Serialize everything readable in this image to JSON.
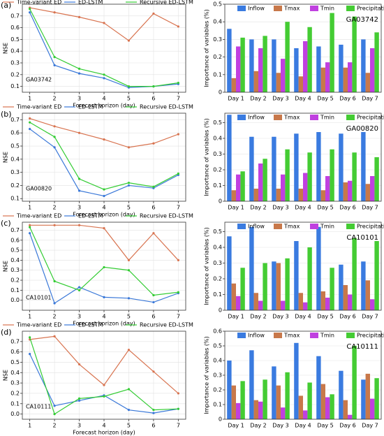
{
  "chart_data": [
    {
      "type": "line",
      "panel_label": "(a)",
      "annotation": "GA03742",
      "xlabel": "Forecast horizon (day)",
      "ylabel": "NSE",
      "x": [
        1,
        2,
        3,
        4,
        5,
        6,
        7
      ],
      "xlim": [
        0.7,
        7.3
      ],
      "xticks": [
        1,
        2,
        3,
        4,
        5,
        6,
        7
      ],
      "ylim": [
        0.05,
        0.8
      ],
      "yticks": [
        0.1,
        0.2,
        0.3,
        0.4,
        0.5,
        0.6,
        0.7
      ],
      "series": [
        {
          "name": "Time-variant ED",
          "color": "#d8734f",
          "values": [
            0.77,
            0.73,
            0.69,
            0.64,
            0.49,
            0.72,
            0.61
          ]
        },
        {
          "name": "ED-LSTM",
          "color": "#3a78d8",
          "values": [
            0.73,
            0.28,
            0.21,
            0.17,
            0.09,
            0.1,
            0.12
          ]
        },
        {
          "name": "Recursive ED-LSTM",
          "color": "#33cc33",
          "values": [
            0.76,
            0.35,
            0.25,
            0.2,
            0.1,
            0.1,
            0.13
          ]
        }
      ]
    },
    {
      "type": "bar",
      "annotation": "GA03742",
      "ylabel": "Importance of variables (%)",
      "categories": [
        "Day 1",
        "Day 2",
        "Day 3",
        "Day 4",
        "Day 5",
        "Day 6",
        "Day 7"
      ],
      "ylim": [
        0,
        0.5
      ],
      "yticks": [
        0.0,
        0.1,
        0.2,
        0.3,
        0.4,
        0.5
      ],
      "series": [
        {
          "name": "Inflow",
          "color": "#3a7be0",
          "values": [
            0.36,
            0.3,
            0.3,
            0.25,
            0.26,
            0.27,
            0.3
          ]
        },
        {
          "name": "Tmax",
          "color": "#c8784a",
          "values": [
            0.08,
            0.12,
            0.11,
            0.09,
            0.14,
            0.14,
            0.11
          ]
        },
        {
          "name": "Tmin",
          "color": "#c040e0",
          "values": [
            0.26,
            0.25,
            0.19,
            0.29,
            0.17,
            0.17,
            0.25
          ]
        },
        {
          "name": "Precipitation",
          "color": "#44cc33",
          "values": [
            0.31,
            0.32,
            0.4,
            0.37,
            0.45,
            0.43,
            0.34
          ]
        }
      ]
    },
    {
      "type": "line",
      "panel_label": "(b)",
      "annotation": "GA00820",
      "xlabel": "Forecast horizon (day)",
      "ylabel": "NSE",
      "x": [
        1,
        2,
        3,
        4,
        5,
        6,
        7
      ],
      "xlim": [
        0.7,
        7.3
      ],
      "xticks": [
        1,
        2,
        3,
        4,
        5,
        6,
        7
      ],
      "ylim": [
        0.08,
        0.75
      ],
      "yticks": [
        0.1,
        0.2,
        0.3,
        0.4,
        0.5,
        0.6,
        0.7
      ],
      "series": [
        {
          "name": "Time-variant ED",
          "color": "#d8734f",
          "values": [
            0.71,
            0.65,
            0.6,
            0.55,
            0.49,
            0.52,
            0.59
          ]
        },
        {
          "name": "ED-LSTM",
          "color": "#3a78d8",
          "values": [
            0.63,
            0.49,
            0.16,
            0.12,
            0.2,
            0.18,
            0.28
          ]
        },
        {
          "name": "Recursive ED-LSTM",
          "color": "#33cc33",
          "values": [
            0.68,
            0.57,
            0.25,
            0.17,
            0.22,
            0.19,
            0.29
          ]
        }
      ]
    },
    {
      "type": "bar",
      "annotation": "GA00820",
      "ylabel": "Importance of variables (%)",
      "categories": [
        "Day 1",
        "Day 2",
        "Day 3",
        "Day 4",
        "Day 5",
        "Day 6",
        "Day 7"
      ],
      "ylim": [
        0,
        0.56
      ],
      "yticks": [
        0.0,
        0.1,
        0.2,
        0.3,
        0.4,
        0.5
      ],
      "series": [
        {
          "name": "Inflow",
          "color": "#3a7be0",
          "values": [
            0.55,
            0.41,
            0.41,
            0.43,
            0.44,
            0.43,
            0.44
          ]
        },
        {
          "name": "Tmax",
          "color": "#c8784a",
          "values": [
            0.07,
            0.08,
            0.08,
            0.08,
            0.07,
            0.12,
            0.11
          ]
        },
        {
          "name": "Tmin",
          "color": "#c040e0",
          "values": [
            0.17,
            0.24,
            0.17,
            0.18,
            0.16,
            0.13,
            0.16
          ]
        },
        {
          "name": "Precipitation",
          "color": "#44cc33",
          "values": [
            0.19,
            0.27,
            0.33,
            0.31,
            0.33,
            0.31,
            0.28
          ]
        }
      ]
    },
    {
      "type": "line",
      "panel_label": "(c)",
      "annotation": "CA10101",
      "xlabel": "Forecast horizon (day)",
      "ylabel": "NSE",
      "x": [
        1,
        2,
        3,
        4,
        5,
        6,
        7
      ],
      "xlim": [
        0.7,
        7.3
      ],
      "xticks": [
        1,
        2,
        3,
        4,
        5,
        6,
        7
      ],
      "ylim": [
        -0.1,
        0.78
      ],
      "yticks": [
        {
          "value": 0,
          "label": "0.0"
        },
        0.1,
        0.2,
        0.3,
        0.4,
        0.5,
        0.6,
        0.7
      ],
      "series": [
        {
          "name": "Time-variant ED",
          "color": "#d8734f",
          "values": [
            0.75,
            0.75,
            0.75,
            0.72,
            0.4,
            0.67,
            0.4
          ]
        },
        {
          "name": "ED-LSTM",
          "color": "#3a78d8",
          "values": [
            0.67,
            -0.03,
            0.13,
            0.03,
            0.02,
            -0.02,
            0.07
          ]
        },
        {
          "name": "Recursive ED-LSTM",
          "color": "#33cc33",
          "values": [
            0.73,
            0.19,
            0.1,
            0.33,
            0.3,
            0.05,
            0.08
          ]
        }
      ]
    },
    {
      "type": "bar",
      "annotation": "CA10101",
      "ylabel": "Importance of variables (%)",
      "categories": [
        "Day 1",
        "Day 2",
        "Day 3",
        "Day 4",
        "Day 5",
        "Day 6",
        "Day 7"
      ],
      "ylim": [
        0,
        0.56
      ],
      "yticks": [
        0.0,
        0.1,
        0.2,
        0.3,
        0.4,
        0.5
      ],
      "series": [
        {
          "name": "Inflow",
          "color": "#3a7be0",
          "values": [
            0.47,
            0.53,
            0.31,
            0.44,
            0.53,
            0.29,
            0.31
          ]
        },
        {
          "name": "Tmax",
          "color": "#c8784a",
          "values": [
            0.17,
            0.11,
            0.3,
            0.11,
            0.12,
            0.16,
            0.19
          ]
        },
        {
          "name": "Tmin",
          "color": "#c040e0",
          "values": [
            0.09,
            0.06,
            0.06,
            0.05,
            0.08,
            0.1,
            0.07
          ]
        },
        {
          "name": "Precipitation",
          "color": "#44cc33",
          "values": [
            0.27,
            0.3,
            0.33,
            0.4,
            0.27,
            0.46,
            0.44
          ]
        }
      ]
    },
    {
      "type": "line",
      "panel_label": "(d)",
      "annotation": "CA10111",
      "xlabel": "Forecast horizon (day)",
      "ylabel": "NSE",
      "x": [
        1,
        2,
        3,
        4,
        5,
        6,
        7
      ],
      "xlim": [
        0.7,
        7.3
      ],
      "xticks": [
        1,
        2,
        3,
        4,
        5,
        6,
        7
      ],
      "ylim": [
        -0.05,
        0.8
      ],
      "yticks": [
        {
          "value": 0,
          "label": "0.0"
        },
        0.1,
        0.2,
        0.3,
        0.4,
        0.5,
        0.6,
        0.7
      ],
      "series": [
        {
          "name": "Time-variant ED",
          "color": "#d8734f",
          "values": [
            0.72,
            0.75,
            0.48,
            0.28,
            0.62,
            0.41,
            0.2
          ]
        },
        {
          "name": "ED-LSTM",
          "color": "#3a78d8",
          "values": [
            0.58,
            0.08,
            0.13,
            0.18,
            0.04,
            0.01,
            0.05
          ]
        },
        {
          "name": "Recursive ED-LSTM",
          "color": "#33cc33",
          "values": [
            0.74,
            0.0,
            0.15,
            0.17,
            0.24,
            0.04,
            0.05
          ]
        }
      ]
    },
    {
      "type": "bar",
      "annotation": "CA10111",
      "ylabel": "Importance of variables (%)",
      "categories": [
        "Day 1",
        "Day 2",
        "Day 3",
        "Day 4",
        "Day 5",
        "Day 6",
        "Day 7"
      ],
      "ylim": [
        0,
        0.6
      ],
      "yticks": [
        0.0,
        0.1,
        0.2,
        0.3,
        0.4,
        0.5,
        0.6
      ],
      "series": [
        {
          "name": "Inflow",
          "color": "#3a7be0",
          "values": [
            0.4,
            0.47,
            0.36,
            0.52,
            0.43,
            0.33,
            0.27
          ]
        },
        {
          "name": "Tmax",
          "color": "#c8784a",
          "values": [
            0.23,
            0.13,
            0.23,
            0.16,
            0.24,
            0.13,
            0.31
          ]
        },
        {
          "name": "Tmin",
          "color": "#c040e0",
          "values": [
            0.11,
            0.12,
            0.08,
            0.06,
            0.15,
            0.03,
            0.14
          ]
        },
        {
          "name": "Precipitation",
          "color": "#44cc33",
          "values": [
            0.26,
            0.27,
            0.32,
            0.25,
            0.17,
            0.5,
            0.28
          ]
        }
      ]
    }
  ]
}
